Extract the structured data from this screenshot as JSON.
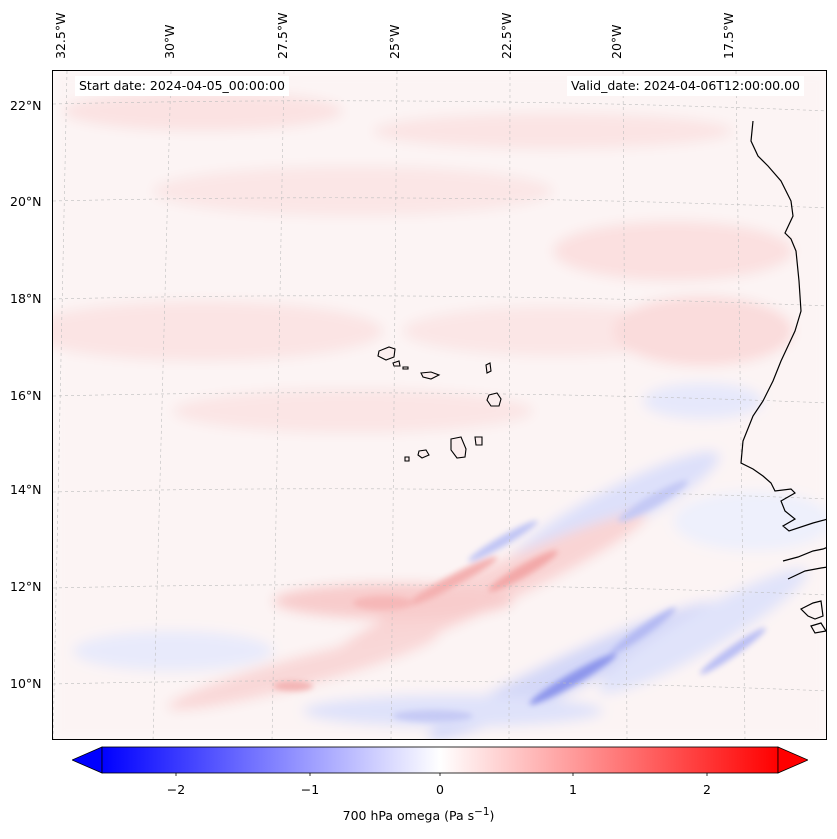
{
  "map": {
    "start_date": "Start date: 2024-04-05_00:00:00",
    "valid_date": "Valid_date: 2024-04-06T12:00:00.00",
    "longitude_labels": [
      "32.5°W",
      "30°W",
      "27.5°W",
      "25°W",
      "22.5°W",
      "20°W",
      "17.5°W"
    ],
    "latitude_labels": [
      "22°N",
      "20°N",
      "18°N",
      "16°N",
      "14°N",
      "12°N",
      "10°N"
    ],
    "field_colors": {
      "negative": "#0000ff",
      "zero": "#ffffff",
      "positive": "#ff0000"
    }
  },
  "colorbar": {
    "label": "700 hPa omega (Pa s",
    "label_superscript": "−1",
    "label_close": ")",
    "ticks": [
      "−2",
      "−1",
      "0",
      "1",
      "2"
    ],
    "range": [
      -2.6,
      2.6
    ]
  }
}
